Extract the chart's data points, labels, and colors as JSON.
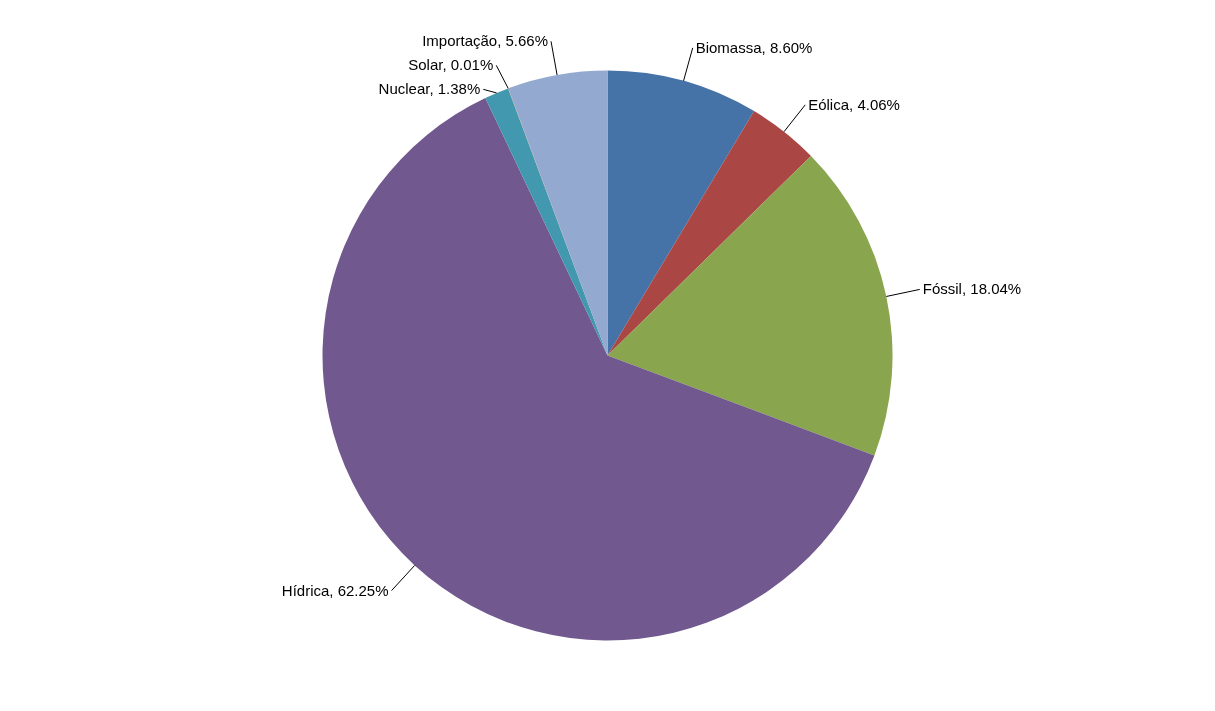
{
  "chart_data": {
    "type": "pie",
    "categories": [
      "Biomassa",
      "Eólica",
      "Fóssil",
      "Hídrica",
      "Nuclear",
      "Solar",
      "Importação"
    ],
    "values": [
      8.6,
      4.06,
      18.04,
      62.25,
      1.38,
      0.01,
      5.66
    ],
    "colors": [
      "#4572a7",
      "#aa4643",
      "#89a54e",
      "#71588f",
      "#4198af",
      "#db843d",
      "#93a9cf"
    ],
    "value_labels": [
      "8.60%",
      "4.06%",
      "18.04%",
      "62.25%",
      "1.38%",
      "0.01%",
      "5.66%"
    ]
  }
}
